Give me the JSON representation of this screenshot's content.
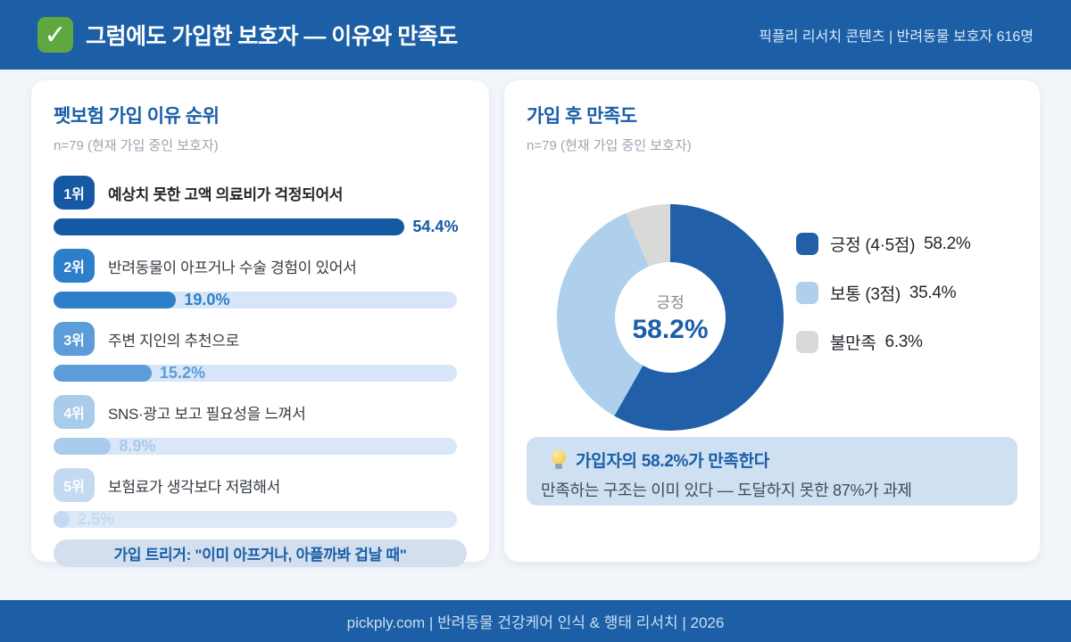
{
  "header": {
    "title": "그럼에도 가입한 보호자 — 이유와 만족도",
    "meta": "픽플리 리서치 콘텐츠 | 반려동물 보호자 616명",
    "check_icon": "✓",
    "check_icon_color": "#5ea83f",
    "bar_color": "#1d5fa6"
  },
  "left_card": {
    "title": "펫보험 가입 이유 순위",
    "sample_note": "n=79  (현재 가입 중인 보호자)",
    "items": [
      {
        "rank_label": "1위",
        "label": "예상치 못한 고액 의료비가 걱정되어서",
        "value": 54.4,
        "display": "54.4%",
        "color": "#1558a4",
        "track_color": "transparent",
        "emphasis": true
      },
      {
        "rank_label": "2위",
        "label": "반려동물이 아프거나 수술 경험이 있어서",
        "value": 19.0,
        "display": "19.0%",
        "color": "#2e7fc9",
        "track_color": "#d6e6f8",
        "emphasis": false
      },
      {
        "rank_label": "3위",
        "label": "주변 지인의 추천으로",
        "value": 15.2,
        "display": "15.2%",
        "color": "#5b9cd9",
        "track_color": "#d6e6f8",
        "emphasis": false
      },
      {
        "rank_label": "4위",
        "label": "SNS·광고 보고 필요성을 느껴서",
        "value": 8.9,
        "display": "8.9%",
        "color": "#a9cbec",
        "track_color": "#d9e7f8",
        "emphasis": false
      },
      {
        "rank_label": "5위",
        "label": "보험료가 생각보다 저렴해서",
        "value": 2.5,
        "display": "2.5%",
        "color": "#c3daf1",
        "track_color": "#dde9f8",
        "emphasis": false
      }
    ],
    "trigger_note": "가입 트리거: \"이미 아프거나, 아플까봐 겁날 때\""
  },
  "right_card": {
    "title": "가입 후 만족도",
    "sample_note": "n=79  (현재 가입 중인 보호자)",
    "donut": {
      "center_label": "긍정",
      "center_value": "58.2%",
      "segments": [
        {
          "name": "긍정 (4·5점)",
          "pct": 58.2,
          "color": "#2160a8"
        },
        {
          "name": "보통 (3점)",
          "pct": 35.4,
          "color": "#aed0ed"
        },
        {
          "name": "불만족",
          "pct": 6.3,
          "color": "#d9dad8"
        }
      ]
    },
    "legend": [
      {
        "label": "긍정 (4·5점)",
        "value": "58.2%",
        "color": "#2160a8"
      },
      {
        "label": "보통 (3점)",
        "value": "35.4%",
        "color": "#aed0ed"
      },
      {
        "label": "불만족",
        "value": "6.3%",
        "color": "#d9dad8"
      }
    ],
    "callout": {
      "title": "가입자의 58.2%가 만족한다",
      "desc": "만족하는 구조는 이미 있다 — 도달하지 못한 87%가 과제"
    }
  },
  "footer": {
    "text": "pickply.com  |  반려동물 건강케어 인식 & 행태 리서치  |  2026"
  },
  "chart_data": [
    {
      "type": "bar",
      "orientation": "horizontal",
      "title": "펫보험 가입 이유 순위",
      "sample": "n=79 (현재 가입 중인 보호자)",
      "categories": [
        "예상치 못한 고액 의료비가 걱정되어서",
        "반려동물이 아프거나 수술 경험이 있어서",
        "주변 지인의 추천으로",
        "SNS·광고 보고 필요성을 느껴서",
        "보험료가 생각보다 저렴해서"
      ],
      "values": [
        54.4,
        19.0,
        15.2,
        8.9,
        2.5
      ],
      "unit": "%",
      "annotation": "가입 트리거: \"이미 아프거나, 아플까봐 겁날 때\""
    },
    {
      "type": "pie",
      "donut": true,
      "title": "가입 후 만족도",
      "sample": "n=79 (현재 가입 중인 보호자)",
      "labels": [
        "긍정 (4·5점)",
        "보통 (3점)",
        "불만족"
      ],
      "values": [
        58.2,
        35.4,
        6.3
      ],
      "unit": "%",
      "center_label": "긍정 58.2%",
      "legend_position": "right",
      "annotation": "가입자의 58.2%가 만족한다 — 만족하는 구조는 이미 있다, 도달하지 못한 87%가 과제"
    }
  ]
}
